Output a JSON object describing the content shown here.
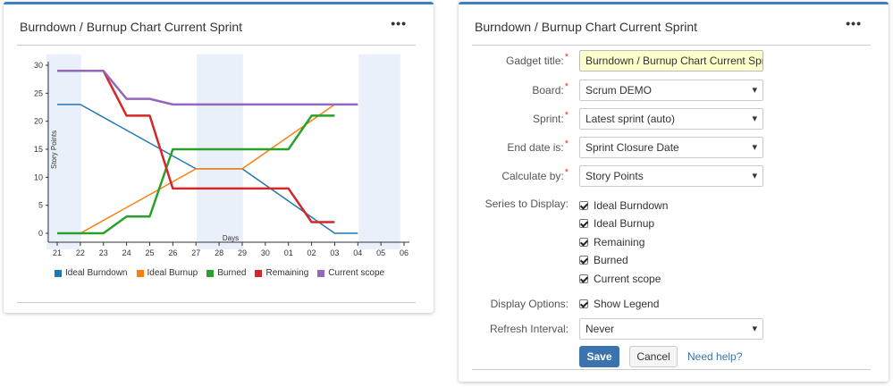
{
  "left_gadget": {
    "title": "Burndown / Burnup Chart Current Sprint",
    "menu_label": "•••"
  },
  "right_gadget": {
    "title": "Burndown / Burnup Chart Current Sprint",
    "menu_label": "•••",
    "form": {
      "gadget_title": {
        "label": "Gadget title:",
        "required": true,
        "value": "Burndown / Burnup Chart Current Spri"
      },
      "board": {
        "label": "Board:",
        "required": true,
        "value": "Scrum DEMO"
      },
      "sprint": {
        "label": "Sprint:",
        "required": true,
        "value": "Latest sprint (auto)"
      },
      "end_date": {
        "label": "End date is:",
        "required": true,
        "value": "Sprint Closure Date"
      },
      "calculate_by": {
        "label": "Calculate by:",
        "required": true,
        "value": "Story Points"
      },
      "series_to_display": {
        "label": "Series to Display:",
        "options": [
          {
            "label": "Ideal Burndown",
            "checked": true
          },
          {
            "label": "Ideal Burnup",
            "checked": true
          },
          {
            "label": "Remaining",
            "checked": true
          },
          {
            "label": "Burned",
            "checked": true
          },
          {
            "label": "Current scope",
            "checked": true
          }
        ]
      },
      "display_options": {
        "label": "Display Options:",
        "options": [
          {
            "label": "Show Legend",
            "checked": true
          }
        ]
      },
      "refresh_interval": {
        "label": "Refresh Interval:",
        "value": "Never"
      },
      "required_marker": "*"
    },
    "buttons": {
      "save": "Save",
      "cancel": "Cancel",
      "help": "Need help?"
    }
  },
  "chart_data": {
    "type": "line",
    "title": "",
    "xlabel": "Days",
    "ylabel": "Story Points",
    "ylim": [
      0,
      30
    ],
    "yticks": [
      0,
      5,
      10,
      15,
      20,
      25,
      30
    ],
    "categories": [
      "21",
      "22",
      "23",
      "24",
      "25",
      "26",
      "27",
      "28",
      "29",
      "30",
      "01",
      "02",
      "03",
      "04",
      "05",
      "06"
    ],
    "shaded_ranges": [
      [
        0,
        1.5
      ],
      [
        6.5,
        8.5
      ],
      [
        13.5,
        15.3
      ]
    ],
    "legend_position": "bottom",
    "series": [
      {
        "name": "Ideal Burndown",
        "color": "#1f77b4",
        "points": [
          [
            0,
            23
          ],
          [
            1,
            23
          ],
          [
            6,
            11.5
          ],
          [
            8,
            11.5
          ],
          [
            12,
            0
          ],
          [
            13,
            0
          ]
        ]
      },
      {
        "name": "Ideal Burnup",
        "color": "#ff7f0e",
        "points": [
          [
            0,
            0
          ],
          [
            1,
            0
          ],
          [
            6,
            11.5
          ],
          [
            8,
            11.5
          ],
          [
            12,
            23
          ],
          [
            13,
            23
          ]
        ]
      },
      {
        "name": "Burned",
        "color": "#2ca02c",
        "points": [
          [
            0,
            0
          ],
          [
            2,
            0
          ],
          [
            3,
            3
          ],
          [
            4,
            3
          ],
          [
            5,
            15
          ],
          [
            10,
            15
          ],
          [
            11,
            21
          ],
          [
            12,
            21
          ]
        ]
      },
      {
        "name": "Remaining",
        "color": "#d62728",
        "points": [
          [
            0,
            29
          ],
          [
            2,
            29
          ],
          [
            3,
            21
          ],
          [
            4,
            21
          ],
          [
            5,
            8
          ],
          [
            10,
            8
          ],
          [
            11,
            2
          ],
          [
            12,
            2
          ]
        ]
      },
      {
        "name": "Current scope",
        "color": "#9467bd",
        "points": [
          [
            0,
            29
          ],
          [
            2,
            29
          ],
          [
            3,
            24
          ],
          [
            4,
            24
          ],
          [
            5,
            23
          ],
          [
            13,
            23
          ]
        ]
      }
    ]
  }
}
